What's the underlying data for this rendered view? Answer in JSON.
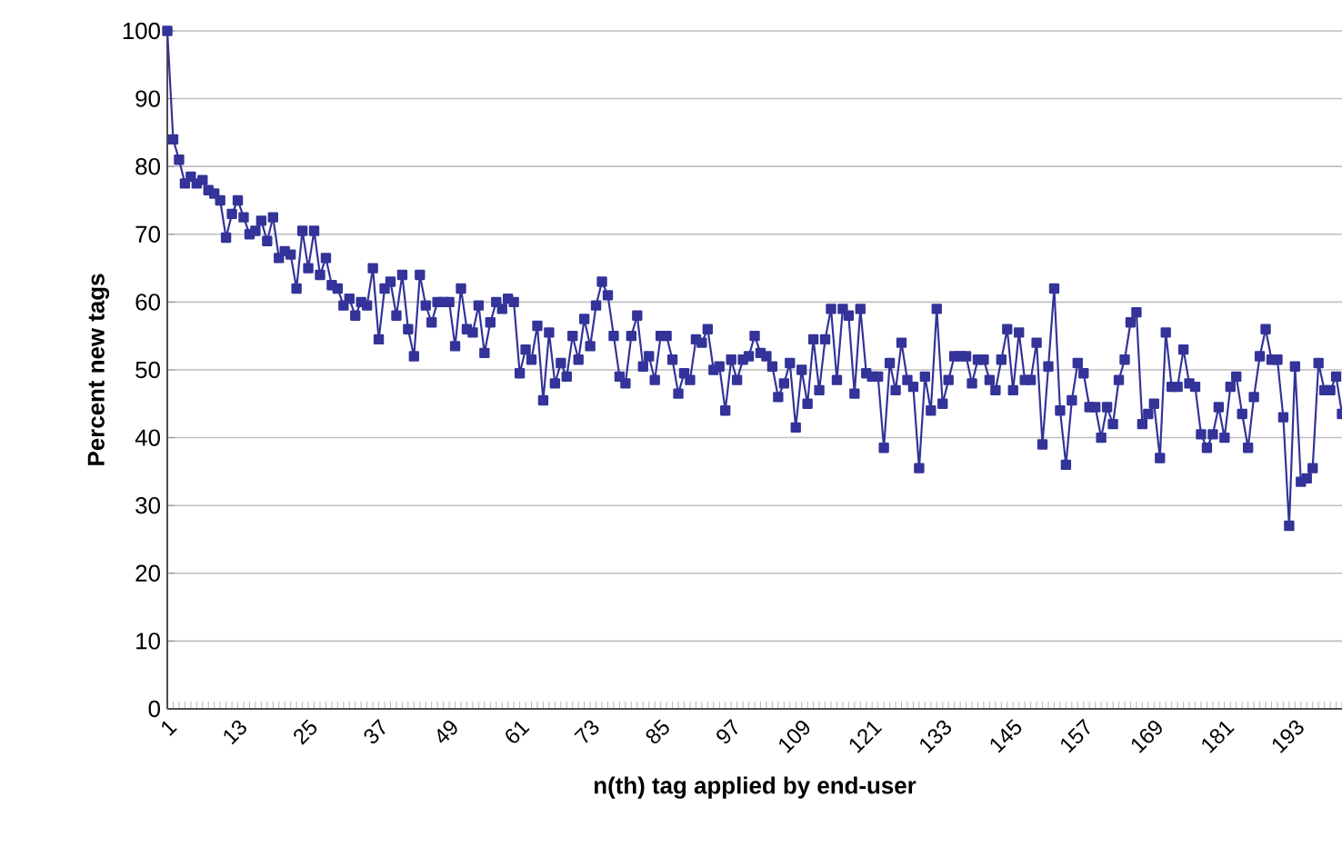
{
  "chart_data": {
    "type": "line",
    "xlabel": "n(th) tag applied by end-user",
    "ylabel": "Percent new tags",
    "categories": [
      "1",
      null,
      null,
      null,
      null,
      null,
      null,
      null,
      null,
      null,
      null,
      null,
      "13",
      null,
      null,
      null,
      null,
      null,
      null,
      null,
      null,
      null,
      null,
      null,
      "25",
      null,
      null,
      null,
      null,
      null,
      null,
      null,
      null,
      null,
      null,
      null,
      "37",
      null,
      null,
      null,
      null,
      null,
      null,
      null,
      null,
      null,
      null,
      null,
      "49",
      null,
      null,
      null,
      null,
      null,
      null,
      null,
      null,
      null,
      null,
      null,
      "61",
      null,
      null,
      null,
      null,
      null,
      null,
      null,
      null,
      null,
      null,
      null,
      "73",
      null,
      null,
      null,
      null,
      null,
      null,
      null,
      null,
      null,
      null,
      null,
      "85",
      null,
      null,
      null,
      null,
      null,
      null,
      null,
      null,
      null,
      null,
      null,
      "97",
      null,
      null,
      null,
      null,
      null,
      null,
      null,
      null,
      null,
      null,
      null,
      "109",
      null,
      null,
      null,
      null,
      null,
      null,
      null,
      null,
      null,
      null,
      null,
      "121",
      null,
      null,
      null,
      null,
      null,
      null,
      null,
      null,
      null,
      null,
      null,
      "133",
      null,
      null,
      null,
      null,
      null,
      null,
      null,
      null,
      null,
      null,
      null,
      "145",
      null,
      null,
      null,
      null,
      null,
      null,
      null,
      null,
      null,
      null,
      null,
      "157",
      null,
      null,
      null,
      null,
      null,
      null,
      null,
      null,
      null,
      null,
      null,
      "169",
      null,
      null,
      null,
      null,
      null,
      null,
      null,
      null,
      null,
      null,
      null,
      "181",
      null,
      null,
      null,
      null,
      null,
      null,
      null,
      null,
      null,
      null,
      null,
      "193",
      null,
      null,
      null,
      null,
      null,
      null,
      null,
      null
    ],
    "series": [
      {
        "color": "#333399",
        "values": [
          100,
          84,
          81,
          77.5,
          78.5,
          77.5,
          78,
          76.5,
          76,
          75,
          69.5,
          73,
          75,
          72.5,
          70,
          70.5,
          72,
          69,
          72.5,
          66.5,
          67.5,
          67,
          62,
          70.5,
          65,
          70.5,
          64,
          66.5,
          62.5,
          62,
          59.5,
          60.5,
          58,
          60,
          59.5,
          65,
          54.5,
          62,
          63,
          58,
          64,
          56,
          52,
          64,
          59.5,
          57,
          60,
          60,
          60,
          53.5,
          62,
          56,
          55.5,
          59.5,
          52.5,
          57,
          60,
          59,
          60.5,
          60,
          49.5,
          53,
          51.5,
          56.5,
          45.5,
          55.5,
          48,
          51,
          49,
          55,
          51.5,
          57.5,
          53.5,
          59.5,
          63,
          61,
          55,
          49,
          48,
          55,
          58,
          50.5,
          52,
          48.5,
          55,
          55,
          51.5,
          46.5,
          49.5,
          48.5,
          54.5,
          54,
          56,
          50,
          50.5,
          44,
          51.5,
          48.5,
          51.5,
          52,
          55,
          52.5,
          52,
          50.5,
          46,
          48,
          51,
          41.5,
          50,
          45,
          54.5,
          47,
          54.5,
          59,
          48.5,
          59,
          58,
          46.5,
          59,
          49.5,
          49,
          49,
          38.5,
          51,
          47,
          54,
          48.5,
          47.5,
          35.5,
          49,
          44,
          59,
          45,
          48.5,
          52,
          52,
          52,
          48,
          51.5,
          51.5,
          48.5,
          47,
          51.5,
          56,
          47,
          55.5,
          48.5,
          48.5,
          54,
          39,
          50.5,
          62,
          44,
          36,
          45.5,
          51,
          49.5,
          44.5,
          44.5,
          40,
          44.5,
          42,
          48.5,
          51.5,
          57,
          58.5,
          42,
          43.5,
          45,
          37,
          55.5,
          47.5,
          47.5,
          53,
          48,
          47.5,
          40.5,
          38.5,
          40.5,
          44.5,
          40,
          47.5,
          49,
          43.5,
          38.5,
          46,
          52,
          56,
          51.5,
          51.5,
          43,
          27,
          50.5,
          33.5,
          34,
          35.5,
          51,
          47,
          47,
          49,
          43.5
        ]
      }
    ],
    "ylim": [
      0,
      100
    ],
    "yticks": [
      0,
      10,
      20,
      30,
      40,
      50,
      60,
      70,
      80,
      90,
      100
    ],
    "grid": "y",
    "marker": "square",
    "line_style": "solid"
  }
}
